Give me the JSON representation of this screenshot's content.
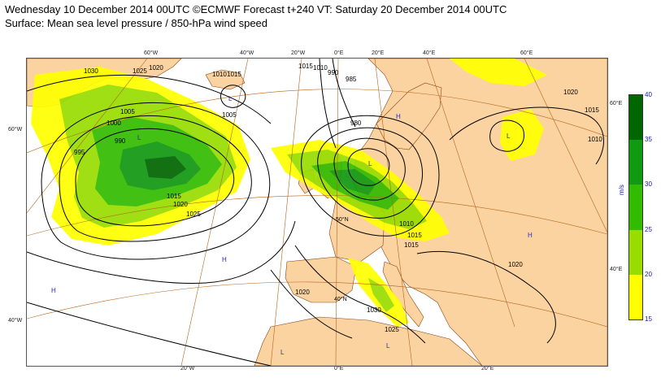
{
  "header": {
    "line1": "Wednesday 10 December 2014 00UTC ©ECMWF Forecast t+240 VT: Saturday 20 December 2014 00UTC",
    "line2": "Surface: Mean sea level pressure / 850-hPa wind speed"
  },
  "colors": {
    "land": "#fbd3a0",
    "sea": "#ffffff",
    "coast": "#8b4513",
    "graticule": "#b5651d",
    "isobar": "#000000",
    "wind_15_20": "#ffff00",
    "wind_20_25": "#99dd00",
    "wind_25_30": "#33bb00",
    "wind_30_35": "#119911",
    "wind_35_40": "#006600"
  },
  "graticule_labels": {
    "top": [
      "60°W",
      "40°W",
      "20°W",
      "0°E",
      "20°E",
      "40°E",
      "60°E"
    ],
    "left": [
      "60°W",
      "40°W"
    ],
    "bottom": [
      "20°W",
      "0°E",
      "20°E"
    ],
    "right": [
      "60°E",
      "40°E"
    ],
    "inner": [
      "50°N",
      "40°N"
    ]
  },
  "isobar_labels": [
    "1030",
    "1025",
    "1020",
    "1005",
    "1000",
    "995",
    "990",
    "1015",
    "1020",
    "1025",
    "1010",
    "1015",
    "1005",
    "1015",
    "1010",
    "990",
    "985",
    "980",
    "1010",
    "1015",
    "1020",
    "1030",
    "1025",
    "1020",
    "1015",
    "1020",
    "1010",
    "1015"
  ],
  "pressure_centres": [
    "L",
    "L",
    "L",
    "L",
    "H",
    "H",
    "H",
    "H",
    "L",
    "L"
  ],
  "colorbar": {
    "unit": "m/s",
    "ticks": [
      "40",
      "35",
      "30",
      "25",
      "20",
      "15"
    ],
    "levels": [
      15,
      20,
      25,
      30,
      35,
      40
    ]
  }
}
